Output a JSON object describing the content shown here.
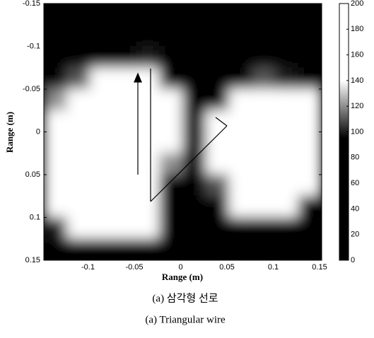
{
  "chart_data": {
    "type": "heatmap",
    "xlabel": "Range (m)",
    "ylabel": "Range (m)",
    "caption_ko": "(a) 삼각형 선로",
    "caption_en": "(a) Triangular wire",
    "x": [
      -0.1375,
      -0.1125,
      -0.0875,
      -0.0625,
      -0.0375,
      -0.0125,
      0.0125,
      0.0375,
      0.0625,
      0.0875,
      0.1125,
      0.1375
    ],
    "y": [
      -0.1375,
      -0.1125,
      -0.0875,
      -0.0625,
      -0.0375,
      -0.0125,
      0.0125,
      0.0375,
      0.0625,
      0.0875,
      0.1125,
      0.1375
    ],
    "z": [
      [
        0,
        0,
        0,
        0,
        0,
        0,
        0,
        0,
        0,
        0,
        0,
        0
      ],
      [
        0,
        0,
        0,
        10,
        20,
        0,
        0,
        0,
        0,
        0,
        0,
        0
      ],
      [
        0,
        0,
        20,
        90,
        100,
        20,
        0,
        0,
        0,
        0,
        0,
        0
      ],
      [
        80,
        110,
        140,
        190,
        190,
        90,
        0,
        0,
        60,
        110,
        100,
        40
      ],
      [
        120,
        150,
        190,
        200,
        200,
        160,
        0,
        40,
        170,
        200,
        190,
        140
      ],
      [
        180,
        200,
        200,
        200,
        200,
        180,
        0,
        140,
        200,
        200,
        200,
        190
      ],
      [
        190,
        200,
        200,
        200,
        200,
        160,
        0,
        160,
        200,
        200,
        200,
        200
      ],
      [
        190,
        200,
        200,
        200,
        200,
        120,
        0,
        150,
        200,
        200,
        200,
        190
      ],
      [
        170,
        200,
        200,
        200,
        200,
        90,
        0,
        110,
        200,
        200,
        200,
        150
      ],
      [
        140,
        190,
        200,
        200,
        190,
        60,
        0,
        30,
        150,
        190,
        160,
        60
      ],
      [
        100,
        140,
        170,
        180,
        140,
        20,
        0,
        0,
        20,
        40,
        20,
        0
      ],
      [
        30,
        60,
        90,
        90,
        60,
        0,
        0,
        0,
        0,
        0,
        0,
        0
      ]
    ],
    "xlim": [
      -0.15,
      0.15
    ],
    "ylim": [
      -0.15,
      0.15
    ],
    "xticks": [
      -0.1,
      -0.05,
      0,
      0.05,
      0.1,
      0.15
    ],
    "yticks": [
      -0.15,
      -0.1,
      -0.05,
      0,
      0.05,
      0.1,
      0.15
    ],
    "clim": [
      0,
      200
    ],
    "cticks": [
      0,
      20,
      40,
      60,
      80,
      100,
      120,
      140,
      160,
      180,
      200
    ],
    "colormap": "gray"
  }
}
